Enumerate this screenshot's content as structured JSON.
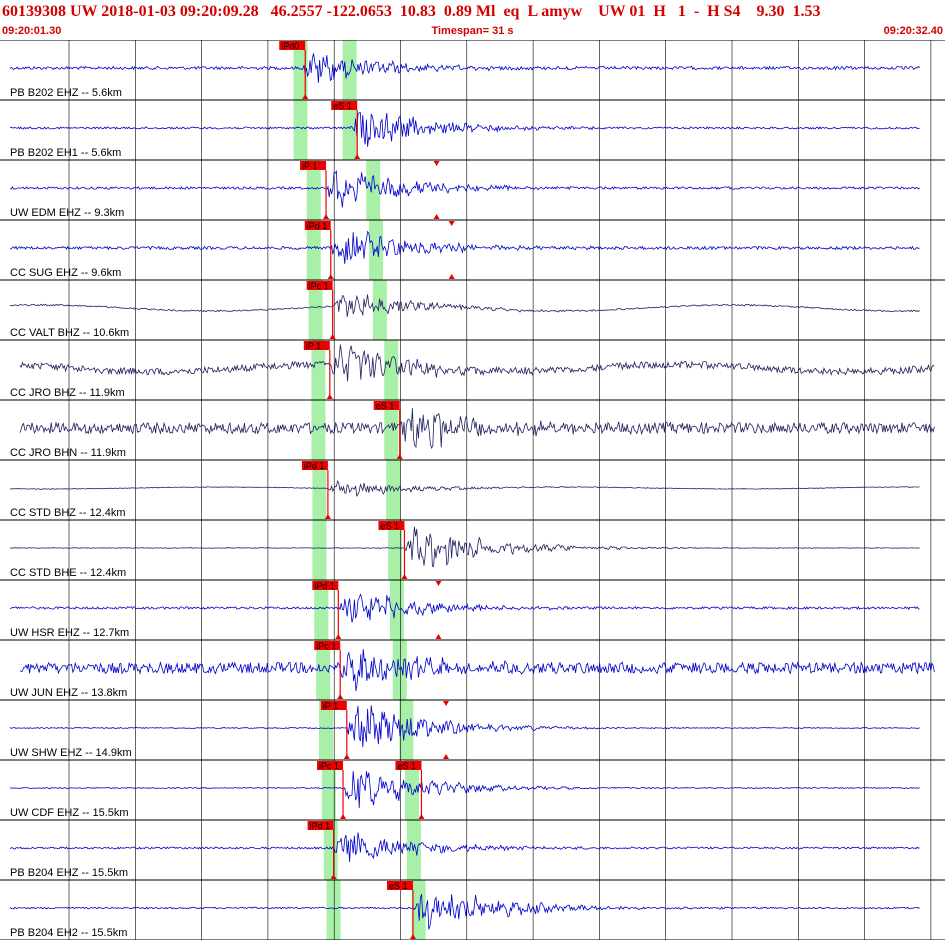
{
  "header": {
    "event_line": "60139308 UW 2018-01-03 09:20:09.28   46.2557 -122.0653  10.83  0.89 Ml  eq  L amyw    UW 01  H   1  -  H S4    9.30  1.53",
    "start_time": "09:20:01.30",
    "timespan": "Timespan=  31 s",
    "end_time": "09:20:32.40"
  },
  "colors": {
    "header_text": "#d40000",
    "trace_blue": "#0000cc",
    "trace_navy": "#202060",
    "pick_red": "#ee0000",
    "window_green": "#a8f0a8",
    "grid": "#000000"
  },
  "traces": [
    {
      "label": "PB B202 EHZ -- 5.6km",
      "color": "blue",
      "amp": 0.6,
      "noise": 0.15,
      "onset": 0.32,
      "swell": 0,
      "picks": [
        {
          "text": "iPd0",
          "t": 0.323,
          "type": "P"
        }
      ],
      "green": [
        0.318,
        0.37
      ]
    },
    {
      "label": "PB B202 EH1 -- 5.6km",
      "color": "blue",
      "amp": 0.7,
      "noise": 0.1,
      "onset": 0.37,
      "swell": 0,
      "picks": [
        {
          "text": "eS 1",
          "t": 0.378,
          "type": "S"
        }
      ],
      "green": [
        0.318,
        0.37
      ]
    },
    {
      "label": "UW EDM EHZ -- 9.3km",
      "color": "blue",
      "amp": 0.75,
      "noise": 0.12,
      "onset": 0.345,
      "swell": 0,
      "picks": [
        {
          "text": "iP 1",
          "t": 0.345,
          "type": "P"
        },
        {
          "text": "",
          "t": 0.462,
          "type": "A"
        }
      ],
      "green": [
        0.332,
        0.395
      ]
    },
    {
      "label": "CC SUG EHZ -- 9.6km",
      "color": "blue",
      "amp": 0.75,
      "noise": 0.15,
      "onset": 0.35,
      "swell": 0,
      "picks": [
        {
          "text": "iPd 1",
          "t": 0.35,
          "type": "P"
        },
        {
          "text": "",
          "t": 0.478,
          "type": "A"
        }
      ],
      "green": [
        0.332,
        0.398
      ]
    },
    {
      "label": "CC VALT BHZ -- 10.6km",
      "color": "navy",
      "amp": 0.5,
      "noise": 0.07,
      "onset": 0.352,
      "swell": 0.25,
      "picks": [
        {
          "text": "iPc 1",
          "t": 0.352,
          "type": "P"
        }
      ],
      "green": [
        0.334,
        0.402
      ]
    },
    {
      "label": "CC JRO BHZ -- 11.9km",
      "color": "navy",
      "amp": 0.75,
      "noise": 0.35,
      "onset": 0.349,
      "swell": 0.3,
      "picks": [
        {
          "text": "iP 1",
          "t": 0.349,
          "type": "P"
        }
      ],
      "green": [
        0.337,
        0.414
      ]
    },
    {
      "label": "CC JRO BHN -- 11.9km",
      "color": "navy",
      "amp": 0.8,
      "noise": 0.55,
      "onset": 0.423,
      "swell": 0,
      "picks": [
        {
          "text": "eS 1",
          "t": 0.423,
          "type": "S"
        }
      ],
      "green": [
        0.337,
        0.414
      ]
    },
    {
      "label": "CC STD BHZ -- 12.4km",
      "color": "navy",
      "amp": 0.3,
      "noise": 0.03,
      "onset": 0.347,
      "swell": 0.08,
      "picks": [
        {
          "text": "iPd 1",
          "t": 0.347,
          "type": "P"
        }
      ],
      "green": [
        0.338,
        0.416
      ]
    },
    {
      "label": "CC STD BHE -- 12.4km",
      "color": "navy",
      "amp": 0.85,
      "noise": 0.03,
      "onset": 0.428,
      "swell": 0,
      "picks": [
        {
          "text": "eS 1",
          "t": 0.428,
          "type": "S"
        }
      ],
      "green": [
        0.338,
        0.418
      ]
    },
    {
      "label": "UW HSR EHZ -- 12.7km",
      "color": "blue",
      "amp": 0.65,
      "noise": 0.12,
      "onset": 0.358,
      "swell": 0,
      "picks": [
        {
          "text": "iPd 1",
          "t": 0.358,
          "type": "P"
        },
        {
          "text": "",
          "t": 0.464,
          "type": "A"
        }
      ],
      "green": [
        0.34,
        0.42
      ]
    },
    {
      "label": "UW JUN EHZ -- 13.8km",
      "color": "blue",
      "amp": 0.75,
      "noise": 0.55,
      "onset": 0.36,
      "swell": 0,
      "picks": [
        {
          "text": "iPc 1",
          "t": 0.36,
          "type": "P"
        }
      ],
      "green": [
        0.342,
        0.423
      ]
    },
    {
      "label": "UW SHW EHZ -- 14.9km",
      "color": "blue",
      "amp": 0.9,
      "noise": 0.05,
      "onset": 0.367,
      "swell": 0,
      "picks": [
        {
          "text": "iP 1",
          "t": 0.367,
          "type": "P"
        },
        {
          "text": "",
          "t": 0.472,
          "type": "A"
        }
      ],
      "green": [
        0.345,
        0.43
      ]
    },
    {
      "label": "UW CDF EHZ -- 15.5km",
      "color": "blue",
      "amp": 0.8,
      "noise": 0.05,
      "onset": 0.363,
      "swell": 0,
      "picks": [
        {
          "text": "iPc 1",
          "t": 0.363,
          "type": "P"
        },
        {
          "text": "eS 1",
          "t": 0.446,
          "type": "S"
        }
      ],
      "green": [
        0.348,
        0.436
      ]
    },
    {
      "label": "PB B204 EHZ -- 15.5km",
      "color": "blue",
      "amp": 0.65,
      "noise": 0.1,
      "onset": 0.353,
      "swell": 0,
      "picks": [
        {
          "text": "iPd 1",
          "t": 0.353,
          "type": "P"
        }
      ],
      "green": [
        0.35,
        0.438
      ]
    },
    {
      "label": "PB B204 EH2 -- 15.5km",
      "color": "blue",
      "amp": 0.85,
      "noise": 0.08,
      "onset": 0.437,
      "swell": 0,
      "picks": [
        {
          "text": "eS 1",
          "t": 0.437,
          "type": "S"
        }
      ],
      "green": [
        0.353,
        0.443
      ]
    }
  ]
}
